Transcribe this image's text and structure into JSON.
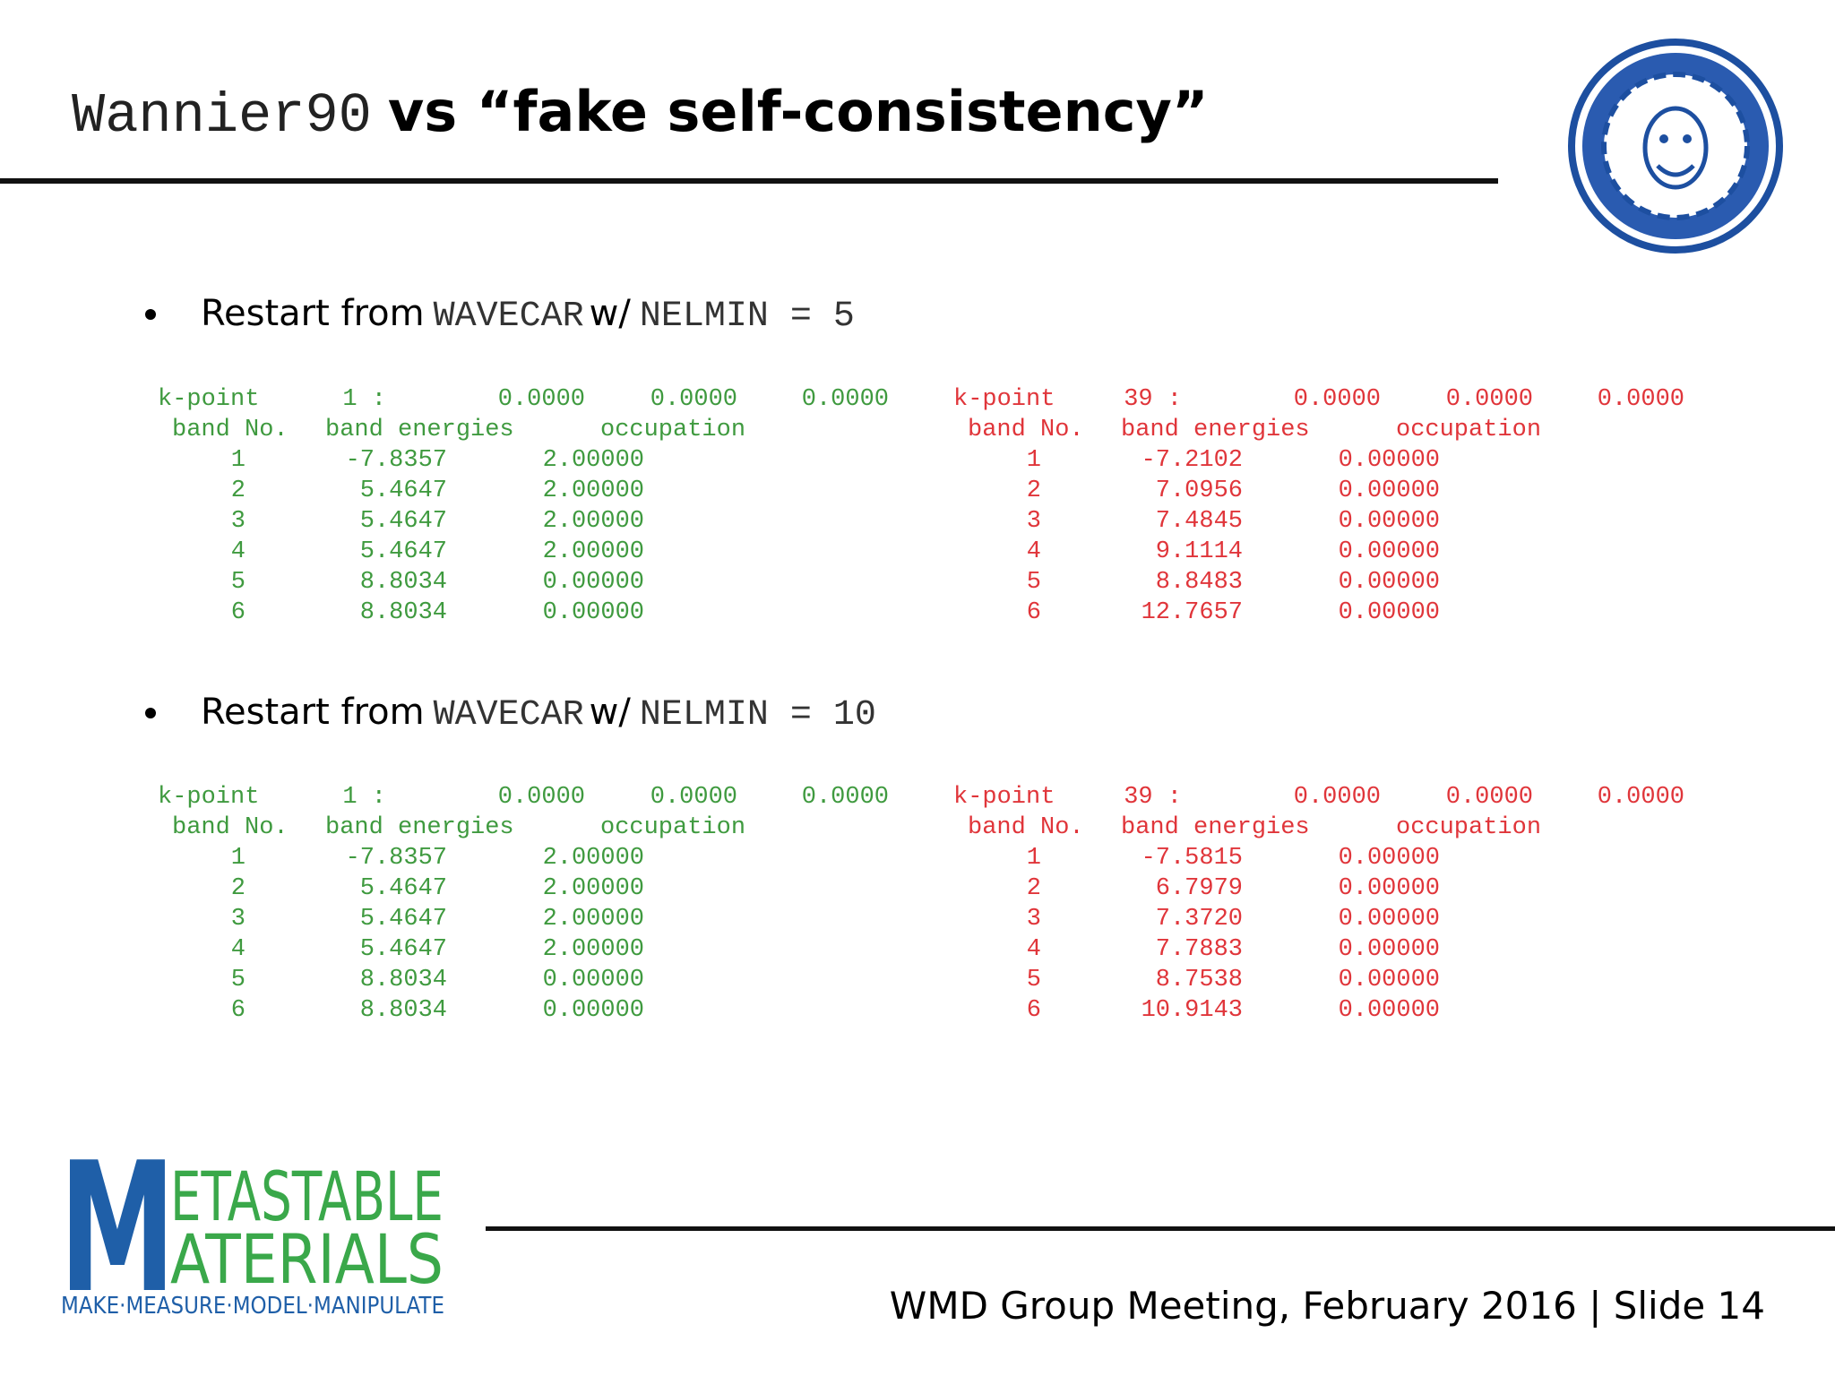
{
  "header": {
    "title_code": "Wannier90",
    "title_text": "vs “fake self-consistency”"
  },
  "sections": [
    {
      "text1": "Restart from",
      "code1": "WAVECAR",
      "text2": "w/",
      "code2": "NELMIN = 5",
      "blocks": [
        {
          "color": "#3f9a3f",
          "kpoint_label": "k-point",
          "kpoint_index": "1 :",
          "coords": [
            "0.0000",
            "0.0000",
            "0.0000"
          ],
          "columns": [
            "band No.",
            "band energies",
            "occupation"
          ],
          "rows": [
            [
              "1",
              "-7.8357",
              "2.00000"
            ],
            [
              "2",
              "5.4647",
              "2.00000"
            ],
            [
              "3",
              "5.4647",
              "2.00000"
            ],
            [
              "4",
              "5.4647",
              "2.00000"
            ],
            [
              "5",
              "8.8034",
              "0.00000"
            ],
            [
              "6",
              "8.8034",
              "0.00000"
            ]
          ]
        },
        {
          "color": "#e0353a",
          "kpoint_label": "k-point",
          "kpoint_index": "39 :",
          "coords": [
            "0.0000",
            "0.0000",
            "0.0000"
          ],
          "columns": [
            "band No.",
            "band energies",
            "occupation"
          ],
          "rows": [
            [
              "1",
              "-7.2102",
              "0.00000"
            ],
            [
              "2",
              "7.0956",
              "0.00000"
            ],
            [
              "3",
              "7.4845",
              "0.00000"
            ],
            [
              "4",
              "9.1114",
              "0.00000"
            ],
            [
              "5",
              "8.8483",
              "0.00000"
            ],
            [
              "6",
              "12.7657",
              "0.00000"
            ]
          ]
        }
      ]
    },
    {
      "text1": "Restart from",
      "code1": "WAVECAR",
      "text2": "w/",
      "code2": "NELMIN = 10",
      "blocks": [
        {
          "color": "#3f9a3f",
          "kpoint_label": "k-point",
          "kpoint_index": "1 :",
          "coords": [
            "0.0000",
            "0.0000",
            "0.0000"
          ],
          "columns": [
            "band No.",
            "band energies",
            "occupation"
          ],
          "rows": [
            [
              "1",
              "-7.8357",
              "2.00000"
            ],
            [
              "2",
              "5.4647",
              "2.00000"
            ],
            [
              "3",
              "5.4647",
              "2.00000"
            ],
            [
              "4",
              "5.4647",
              "2.00000"
            ],
            [
              "5",
              "8.8034",
              "0.00000"
            ],
            [
              "6",
              "8.8034",
              "0.00000"
            ]
          ]
        },
        {
          "color": "#e0353a",
          "kpoint_label": "k-point",
          "kpoint_index": "39 :",
          "coords": [
            "0.0000",
            "0.0000",
            "0.0000"
          ],
          "columns": [
            "band No.",
            "band energies",
            "occupation"
          ],
          "rows": [
            [
              "1",
              "-7.5815",
              "0.00000"
            ],
            [
              "2",
              "6.7979",
              "0.00000"
            ],
            [
              "3",
              "7.3720",
              "0.00000"
            ],
            [
              "4",
              "7.7883",
              "0.00000"
            ],
            [
              "5",
              "8.7538",
              "0.00000"
            ],
            [
              "6",
              "10.9143",
              "0.00000"
            ]
          ]
        }
      ]
    }
  ],
  "logo": {
    "initial": "M",
    "line1": "ETASTABLE",
    "line2": "ATERIALS",
    "tagline": "MAKE·MEASURE·MODEL·MANIPULATE"
  },
  "footer": {
    "text": "WMD Group Meeting, February 2016 | Slide 14"
  }
}
